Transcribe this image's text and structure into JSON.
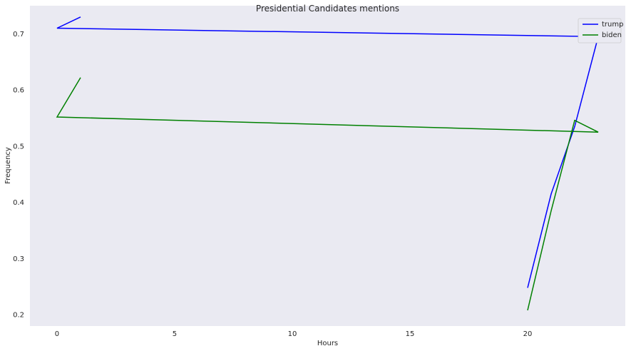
{
  "chart_data": {
    "type": "line",
    "title": "Presidential Candidates mentions",
    "xlabel": "Hours",
    "ylabel": "Frequency",
    "xlim": [
      -1.15,
      24.15
    ],
    "ylim": [
      0.18,
      0.75
    ],
    "xticks": [
      0,
      5,
      10,
      15,
      20
    ],
    "yticks": [
      0.2,
      0.3,
      0.4,
      0.5,
      0.6,
      0.7
    ],
    "grid": false,
    "legend_position": "top-right",
    "background": "#eaeaf2",
    "series": [
      {
        "name": "trump",
        "color": "#0000ff",
        "x": [
          20,
          21,
          22,
          23,
          0,
          1
        ],
        "y": [
          0.248,
          0.415,
          0.535,
          0.695,
          0.71,
          0.73
        ]
      },
      {
        "name": "biden",
        "color": "#008000",
        "x": [
          20,
          21,
          22,
          23,
          0,
          1
        ],
        "y": [
          0.208,
          0.385,
          0.546,
          0.525,
          0.552,
          0.622
        ]
      }
    ]
  }
}
